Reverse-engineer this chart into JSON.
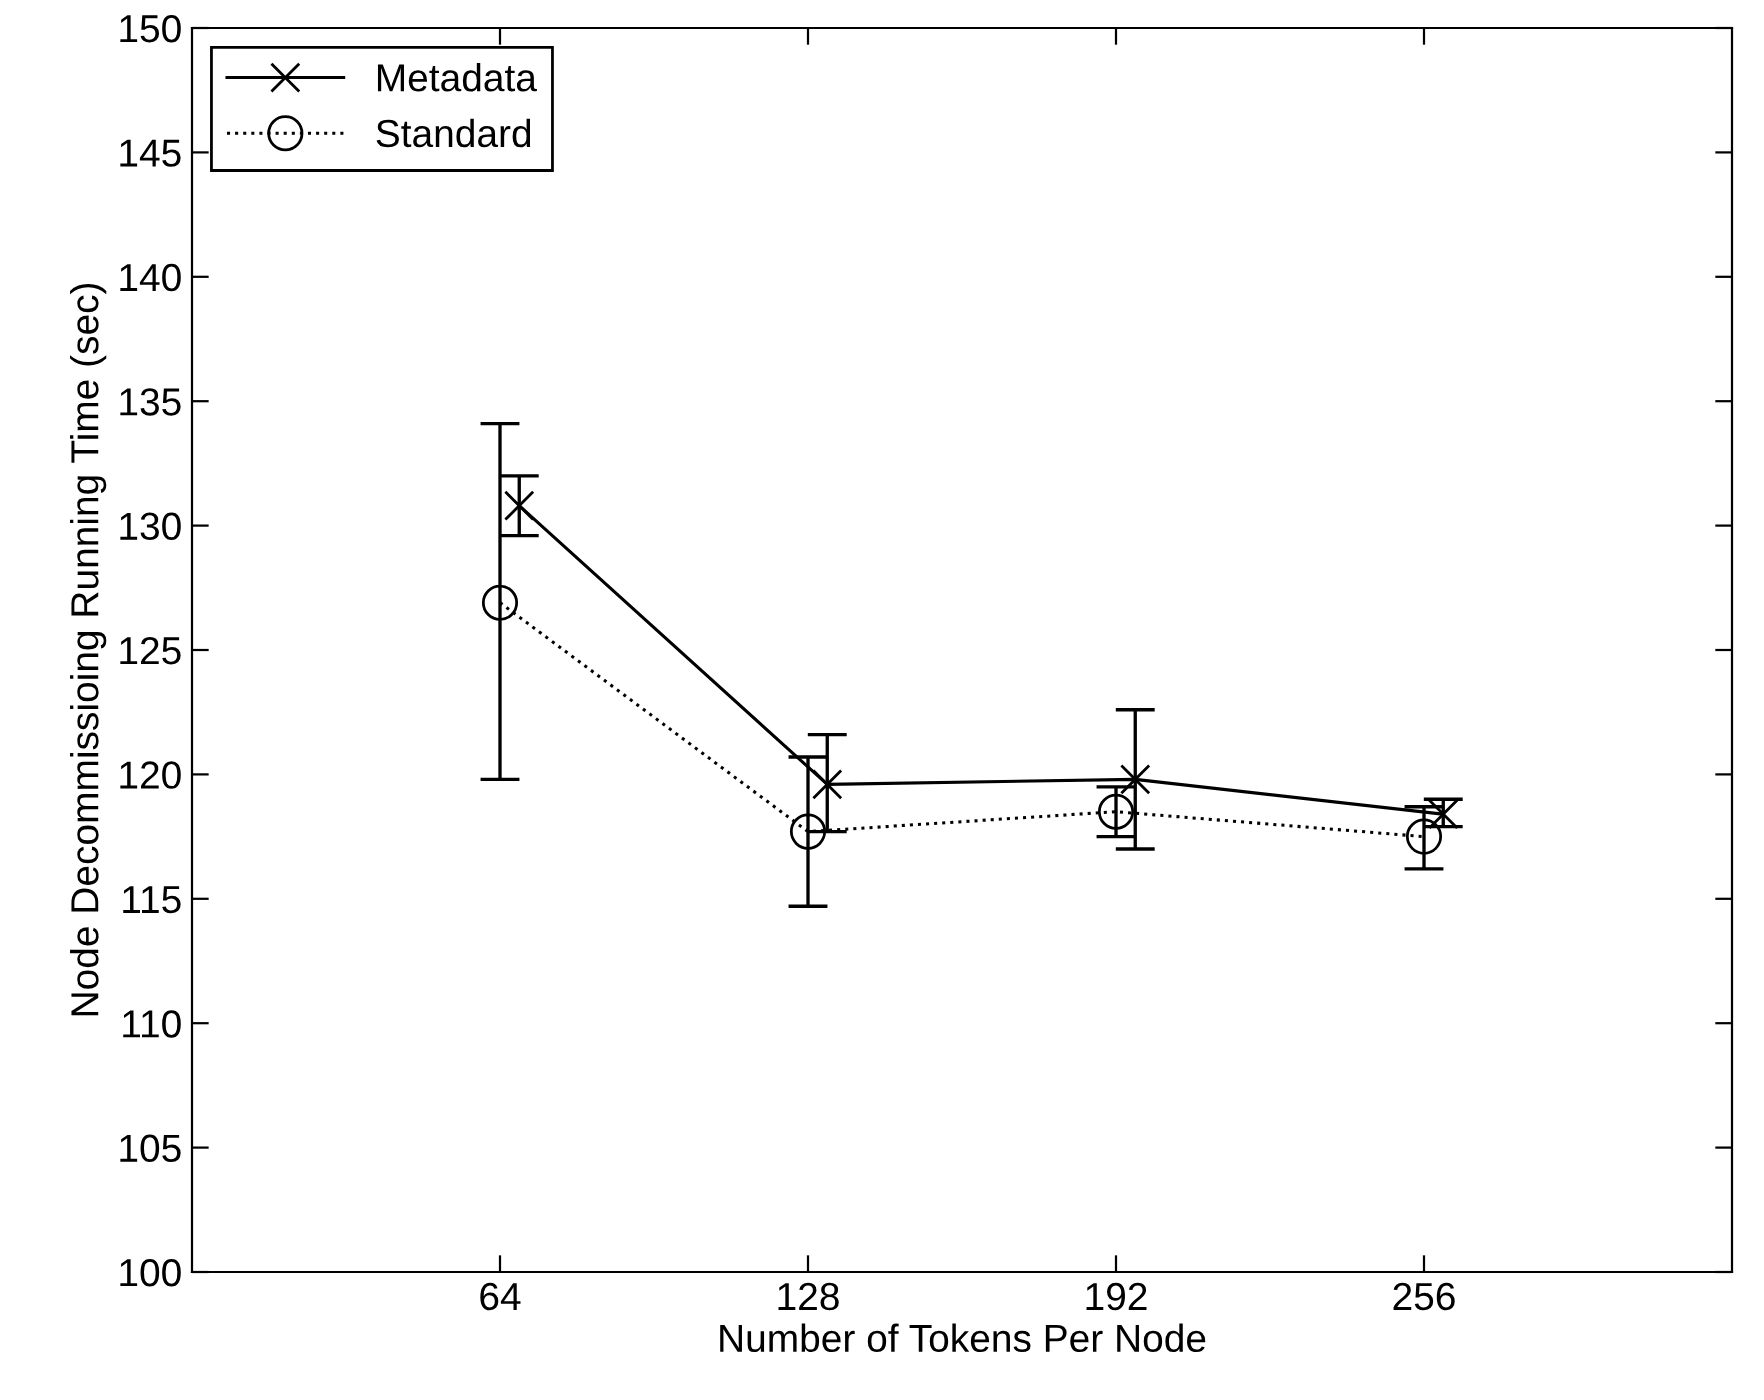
{
  "chart_data": {
    "type": "line",
    "xlabel": "Number of Tokens Per Node",
    "ylabel": "Node Decommissioing Running Time (sec)",
    "xlim": [
      0,
      320
    ],
    "xticks": [
      64,
      128,
      192,
      256
    ],
    "ylim": [
      100,
      150
    ],
    "yticks": [
      100,
      105,
      110,
      115,
      120,
      125,
      130,
      135,
      140,
      145,
      150
    ],
    "grid": false,
    "legend": "top left",
    "series": [
      {
        "name": "Metadata",
        "color": "#000000",
        "marker": "cross",
        "line_style": "solid",
        "x": [
          68,
          132,
          196,
          260
        ],
        "values": [
          130.8,
          119.6,
          119.8,
          118.4
        ],
        "errors": [
          [
            129.6,
            132.0
          ],
          [
            117.7,
            121.6
          ],
          [
            117.0,
            122.6
          ],
          [
            117.9,
            119.0
          ]
        ]
      },
      {
        "name": "Standard",
        "color": "#000000",
        "marker": "circle",
        "line_style": "dotted",
        "x": [
          64,
          128,
          192,
          256
        ],
        "values": [
          126.9,
          117.7,
          118.5,
          117.5
        ],
        "errors": [
          [
            119.8,
            134.1
          ],
          [
            114.7,
            120.7
          ],
          [
            117.5,
            119.5
          ],
          [
            116.2,
            118.7
          ]
        ]
      }
    ]
  }
}
